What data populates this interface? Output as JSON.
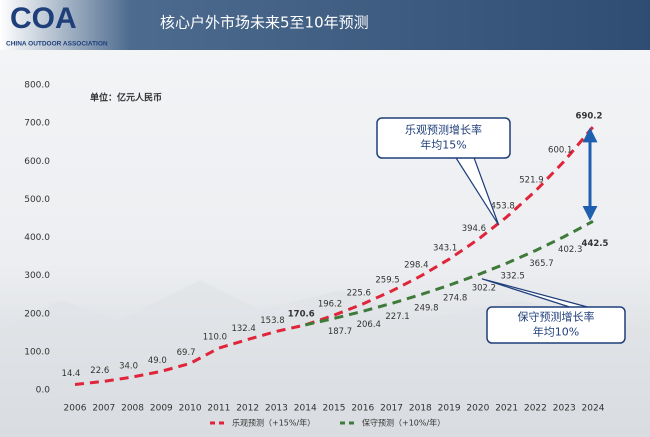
{
  "header": {
    "logo": "COA",
    "logo_subtitle": "CHINA OUTDOOR ASSOCIATION",
    "title": "核心户外市场未来5至10年预测"
  },
  "chart_data": {
    "type": "line",
    "unit_label": "单位：亿元人民币",
    "categories": [
      "2006",
      "2007",
      "2008",
      "2009",
      "2010",
      "2011",
      "2012",
      "2013",
      "2014",
      "2015",
      "2016",
      "2017",
      "2018",
      "2019",
      "2020",
      "2021",
      "2022",
      "2023",
      "2024"
    ],
    "series": [
      {
        "name": "乐观预测（+15%/年）",
        "color": "#e0253a",
        "values": [
          14.4,
          22.6,
          34.0,
          49.0,
          69.7,
          110.0,
          132.4,
          153.8,
          170.6,
          196.2,
          225.6,
          259.5,
          298.4,
          343.1,
          394.6,
          453.8,
          521.9,
          600.1,
          690.2
        ],
        "value_labels": [
          "14.4",
          "22.6",
          "34.0",
          "49.0",
          "69.7",
          "110.0",
          "132.4",
          "153.8",
          "170.6",
          "196.2",
          "225.6",
          "259.5",
          "298.4",
          "343.1",
          "394.6",
          "453.8",
          "521.9",
          "600.1",
          "690.2"
        ]
      },
      {
        "name": "保守预测（+10%/年）",
        "color": "#3f7a3a",
        "values": [
          null,
          null,
          null,
          null,
          null,
          null,
          null,
          null,
          170.6,
          187.7,
          206.4,
          227.1,
          249.8,
          274.8,
          302.2,
          332.5,
          365.7,
          402.3,
          442.5
        ],
        "value_labels": [
          null,
          null,
          null,
          null,
          null,
          null,
          null,
          null,
          null,
          "187.7",
          "206.4",
          "227.1",
          "249.8",
          "274.8",
          "302.2",
          "332.5",
          "365.7",
          "402.3",
          "442.5"
        ]
      }
    ],
    "ylim": [
      0,
      800
    ],
    "yticks": [
      {
        "value": 0,
        "label": "0.0"
      },
      {
        "value": 100,
        "label": "100.0"
      },
      {
        "value": 200,
        "label": "200.0"
      },
      {
        "value": 300,
        "label": "300.0"
      },
      {
        "value": 400,
        "label": "400.0"
      },
      {
        "value": 500,
        "label": "500.0"
      },
      {
        "value": 600,
        "label": "600.0"
      },
      {
        "value": 700,
        "label": "700.0"
      },
      {
        "value": 800,
        "label": "800.0"
      }
    ],
    "annotations": [
      {
        "lines": [
          "乐观预测增长率",
          "年均15%"
        ]
      },
      {
        "lines": [
          "保守预测增长率",
          "年均10%"
        ]
      }
    ],
    "legend": "bottom"
  }
}
